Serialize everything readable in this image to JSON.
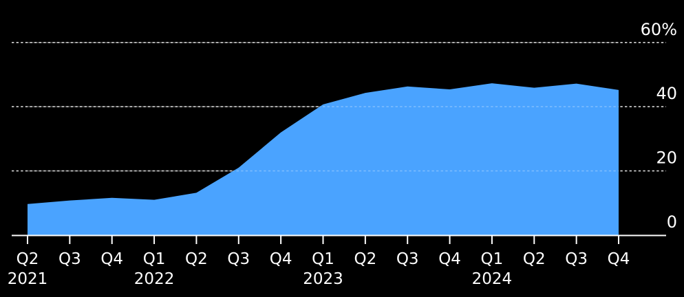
{
  "chart_data": {
    "type": "area",
    "title": "",
    "xlabel": "",
    "ylabel": "",
    "unit": "%",
    "categories": [
      "Q2 2021",
      "Q3 2021",
      "Q4 2021",
      "Q1 2022",
      "Q2 2022",
      "Q3 2022",
      "Q4 2022",
      "Q1 2023",
      "Q2 2023",
      "Q3 2023",
      "Q4 2023",
      "Q1 2024",
      "Q2 2024",
      "Q3 2024",
      "Q4 2024"
    ],
    "x_tick_labels": [
      "Q2",
      "Q3",
      "Q4",
      "Q1",
      "Q2",
      "Q3",
      "Q4",
      "Q1",
      "Q2",
      "Q3",
      "Q4",
      "Q1",
      "Q2",
      "Q3",
      "Q4"
    ],
    "year_labels": [
      {
        "text": "2021",
        "tick_index": 0
      },
      {
        "text": "2022",
        "tick_index": 3
      },
      {
        "text": "2023",
        "tick_index": 7
      },
      {
        "text": "2024",
        "tick_index": 11
      }
    ],
    "values": [
      9.7,
      10.8,
      11.6,
      11.0,
      13.2,
      21.0,
      32.0,
      40.7,
      44.3,
      46.3,
      45.4,
      47.3,
      45.9,
      47.2,
      45.2
    ],
    "y_ticks": [
      {
        "value": 0,
        "label": "0"
      },
      {
        "value": 20,
        "label": "20"
      },
      {
        "value": 40,
        "label": "40"
      },
      {
        "value": 60,
        "label": "60%"
      }
    ],
    "ylim": [
      0,
      62
    ],
    "grid": "horizontal-dotted",
    "legend_position": "none",
    "y_axis_side": "right"
  },
  "colors": {
    "background": "#000000",
    "area_fill": "#4aa3ff",
    "axis_line": "#ffffff",
    "tick_mark": "#ffffff",
    "gridline": "#d6d6d6",
    "gridline_over_area": "#ffffff",
    "label_text": "#ffffff"
  }
}
